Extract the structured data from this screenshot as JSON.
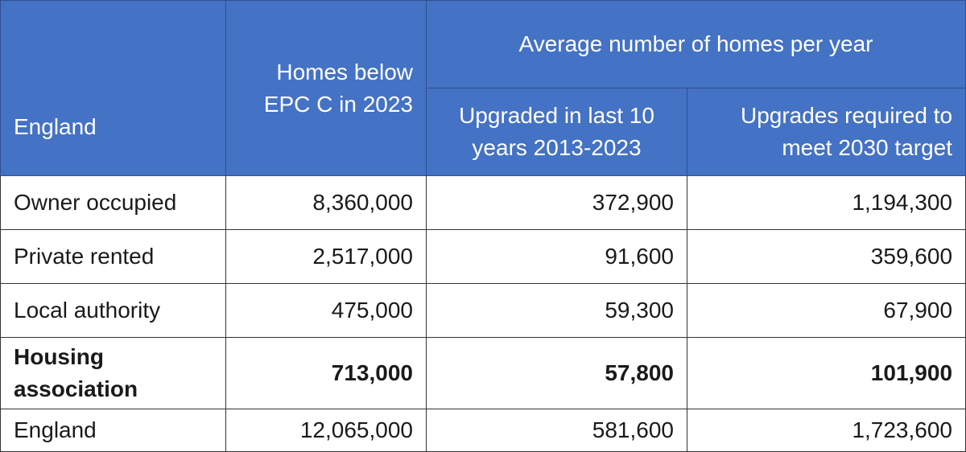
{
  "table": {
    "corner_label": "England",
    "group_header": "Average number of homes per year",
    "columns": [
      "Homes below EPC C in 2023",
      "Upgraded in last 10 years 2013-2023",
      "Upgrades required to meet 2030 target"
    ],
    "rows": [
      {
        "label": "Owner occupied",
        "values": [
          "8,360,000",
          "372,900",
          "1,194,300"
        ],
        "bold": false
      },
      {
        "label": "Private rented",
        "values": [
          "2,517,000",
          "91,600",
          "359,600"
        ],
        "bold": false
      },
      {
        "label": "Local authority",
        "values": [
          "475,000",
          "59,300",
          "67,900"
        ],
        "bold": false
      },
      {
        "label": "Housing association",
        "values": [
          "713,000",
          "57,800",
          "101,900"
        ],
        "bold": true
      },
      {
        "label": "England",
        "values": [
          "12,065,000",
          "581,600",
          "1,723,600"
        ],
        "bold": false
      }
    ]
  },
  "colors": {
    "header_bg": "#4472c4",
    "header_text": "#ffffff",
    "body_text": "#1a1a1a"
  }
}
